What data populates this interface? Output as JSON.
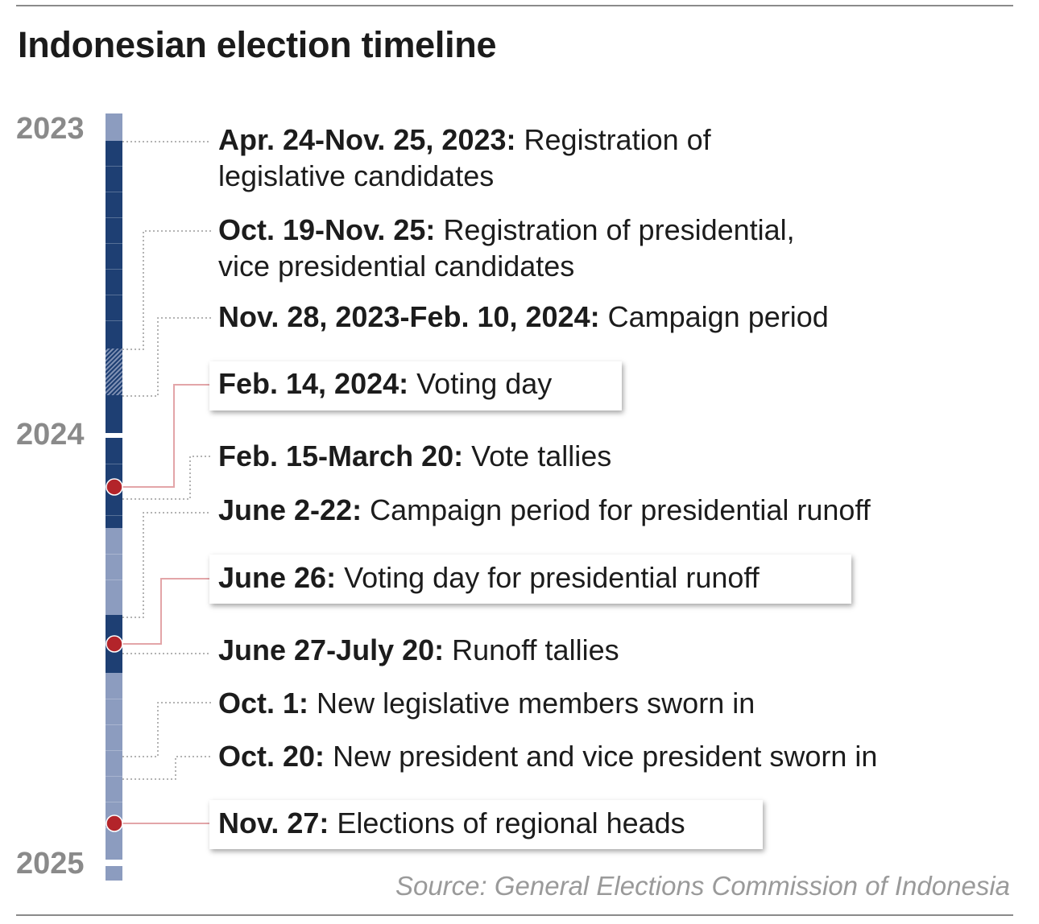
{
  "title": "Indonesian election timeline",
  "years": [
    "2023",
    "2024",
    "2025"
  ],
  "colors": {
    "bar_dark": "#1e3f73",
    "bar_light": "#8c9cbf",
    "marker": "#b3242a",
    "year_label": "#8a8a8a",
    "source_text": "#9a9a9a"
  },
  "events": [
    {
      "date": "Apr. 24-Nov. 25, 2023:",
      "label": "Registration of",
      "label2": "legislative candidates",
      "highlight": false
    },
    {
      "date": "Oct. 19-Nov. 25:",
      "label": "Registration of presidential,",
      "label2": "vice presidential candidates",
      "highlight": false
    },
    {
      "date": "Nov. 28, 2023-Feb. 10, 2024:",
      "label": "Campaign period",
      "highlight": false
    },
    {
      "date": "Feb. 14, 2024:",
      "label": "Voting day",
      "highlight": true
    },
    {
      "date": "Feb. 15-March 20:",
      "label": "Vote tallies",
      "highlight": false
    },
    {
      "date": "June 2-22:",
      "label": "Campaign period for presidential runoff",
      "highlight": false
    },
    {
      "date": "June 26:",
      "label": "Voting day for presidential runoff",
      "highlight": true
    },
    {
      "date": "June 27-July 20:",
      "label": "Runoff tallies",
      "highlight": false
    },
    {
      "date": "Oct. 1:",
      "label": "New legislative members sworn in",
      "highlight": false
    },
    {
      "date": "Oct. 20:",
      "label": "New president and vice president sworn in",
      "highlight": false
    },
    {
      "date": "Nov. 27:",
      "label": "Elections of regional heads",
      "highlight": true
    }
  ],
  "source": "Source: General Elections Commission of Indonesia"
}
